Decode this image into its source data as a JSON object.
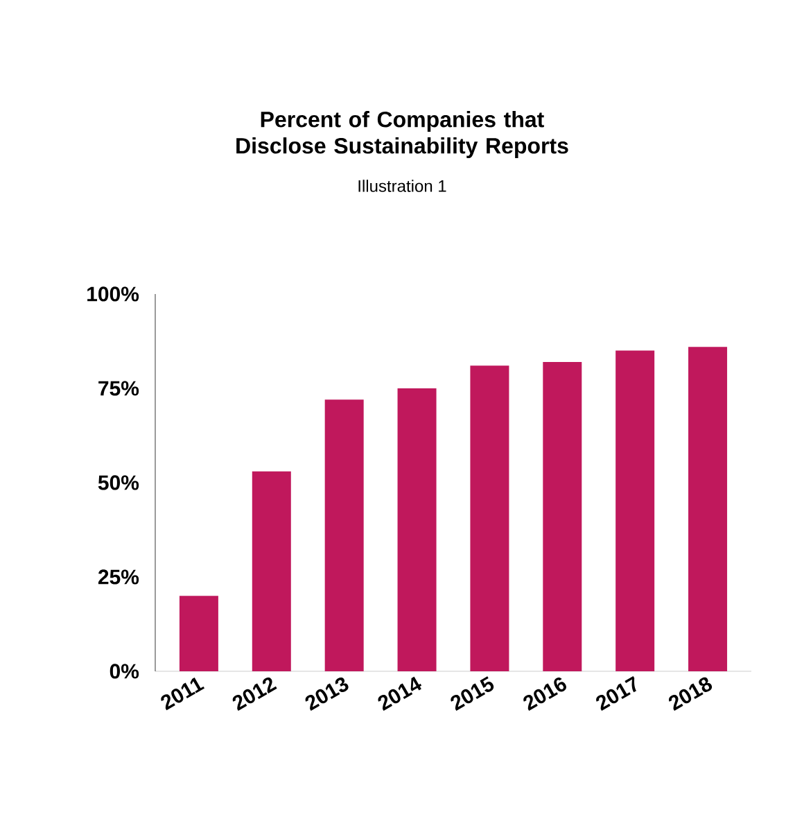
{
  "chart_data": {
    "type": "bar",
    "title": "Percent of Companies that Disclose Sustainability Reports",
    "subtitle": "Illustration 1",
    "categories": [
      "2011",
      "2012",
      "2013",
      "2014",
      "2015",
      "2016",
      "2017",
      "2018"
    ],
    "values": [
      20,
      53,
      72,
      75,
      81,
      82,
      85,
      86
    ],
    "color": "#c0185c",
    "ylim": [
      0,
      100
    ],
    "yticks": [
      {
        "value": 0,
        "label": "0%"
      },
      {
        "value": 25,
        "label": "25%"
      },
      {
        "value": 50,
        "label": "50%"
      },
      {
        "value": 75,
        "label": "75%"
      },
      {
        "value": 100,
        "label": "100%"
      }
    ],
    "grid": false
  }
}
